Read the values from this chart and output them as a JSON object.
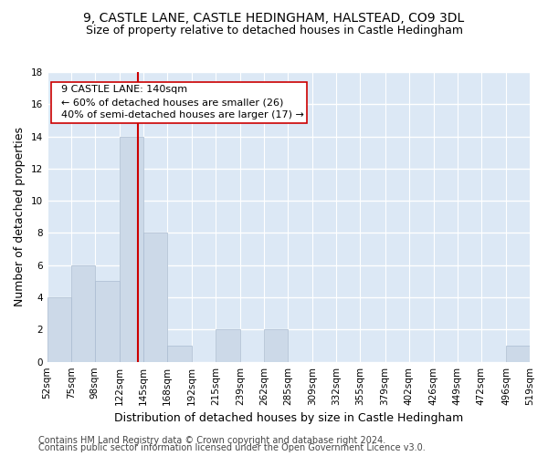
{
  "title1": "9, CASTLE LANE, CASTLE HEDINGHAM, HALSTEAD, CO9 3DL",
  "title2": "Size of property relative to detached houses in Castle Hedingham",
  "xlabel": "Distribution of detached houses by size in Castle Hedingham",
  "ylabel": "Number of detached properties",
  "footnote1": "Contains HM Land Registry data © Crown copyright and database right 2024.",
  "footnote2": "Contains public sector information licensed under the Open Government Licence v3.0.",
  "bin_labels": [
    "52sqm",
    "75sqm",
    "98sqm",
    "122sqm",
    "145sqm",
    "168sqm",
    "192sqm",
    "215sqm",
    "239sqm",
    "262sqm",
    "285sqm",
    "309sqm",
    "332sqm",
    "355sqm",
    "379sqm",
    "402sqm",
    "426sqm",
    "449sqm",
    "472sqm",
    "496sqm",
    "519sqm"
  ],
  "bar_values": [
    4,
    6,
    5,
    14,
    8,
    1,
    0,
    2,
    0,
    2,
    0,
    0,
    0,
    0,
    0,
    0,
    0,
    0,
    0,
    1,
    0
  ],
  "bar_color": "#ccd9e8",
  "bar_edgecolor": "#aabbd0",
  "property_value": 140,
  "property_line_color": "#cc0000",
  "annotation_text": "  9 CASTLE LANE: 140sqm\n  ← 60% of detached houses are smaller (26)\n  40% of semi-detached houses are larger (17) →",
  "annotation_box_color": "#ffffff",
  "annotation_box_edgecolor": "#cc0000",
  "ylim": [
    0,
    18
  ],
  "yticks": [
    0,
    2,
    4,
    6,
    8,
    10,
    12,
    14,
    16,
    18
  ],
  "background_color": "#dce8f5",
  "grid_color": "#ffffff",
  "title1_fontsize": 10,
  "title2_fontsize": 9,
  "xlabel_fontsize": 9,
  "ylabel_fontsize": 9,
  "tick_fontsize": 7.5,
  "annotation_fontsize": 8,
  "footnote_fontsize": 7
}
